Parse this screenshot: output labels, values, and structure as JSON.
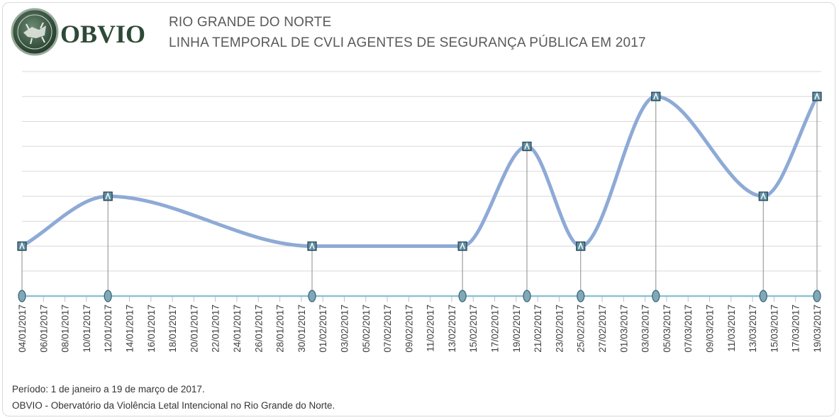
{
  "header": {
    "logo_text": "OBVIO",
    "title_line1": "RIO GRANDE DO NORTE",
    "title_line2": "LINHA TEMPORAL DE CVLI AGENTES DE SEGURANÇA PÚBLICA EM  2017"
  },
  "footer": {
    "period": "Período: 1 de janeiro a 19 de março de 2017.",
    "source": "OBVIO - Obervatório da Violência Letal Intencional no Rio Grande do Norte."
  },
  "chart_data": {
    "type": "line",
    "title": "LINHA TEMPORAL DE CVLI AGENTES DE SEGURANÇA PÚBLICA EM  2017",
    "xlabel": "",
    "ylabel": "",
    "x_ticks": [
      "04/01/2017",
      "06/01/2017",
      "08/01/2017",
      "10/01/2017",
      "12/01/2017",
      "14/01/2017",
      "16/01/2017",
      "18/01/2017",
      "20/01/2017",
      "22/01/2017",
      "24/01/2017",
      "26/01/2017",
      "28/01/2017",
      "30/01/2017",
      "01/02/2017",
      "03/02/2017",
      "05/02/2017",
      "07/02/2017",
      "09/02/2017",
      "11/02/2017",
      "13/02/2017",
      "15/02/2017",
      "17/02/2017",
      "19/02/2017",
      "21/02/2017",
      "23/02/2017",
      "25/02/2017",
      "27/02/2017",
      "01/03/2017",
      "03/03/2017",
      "05/03/2017",
      "07/03/2017",
      "09/03/2017",
      "11/03/2017",
      "13/03/2017",
      "15/03/2017",
      "17/03/2017",
      "19/03/2017"
    ],
    "ylim": [
      0,
      9
    ],
    "grid": true,
    "series": [
      {
        "points": [
          {
            "x": "04/01/2017",
            "y": 2
          },
          {
            "x": "12/01/2017",
            "y": 4
          },
          {
            "x": "31/01/2017",
            "y": 2
          },
          {
            "x": "14/02/2017",
            "y": 2
          },
          {
            "x": "20/02/2017",
            "y": 6
          },
          {
            "x": "25/02/2017",
            "y": 2
          },
          {
            "x": "04/03/2017",
            "y": 8
          },
          {
            "x": "14/03/2017",
            "y": 4
          },
          {
            "x": "19/03/2017",
            "y": 8
          }
        ],
        "color": "#8eaad6"
      }
    ],
    "baseline_color": "#8fc1d3",
    "gridline_color": "#d9d9d9"
  }
}
